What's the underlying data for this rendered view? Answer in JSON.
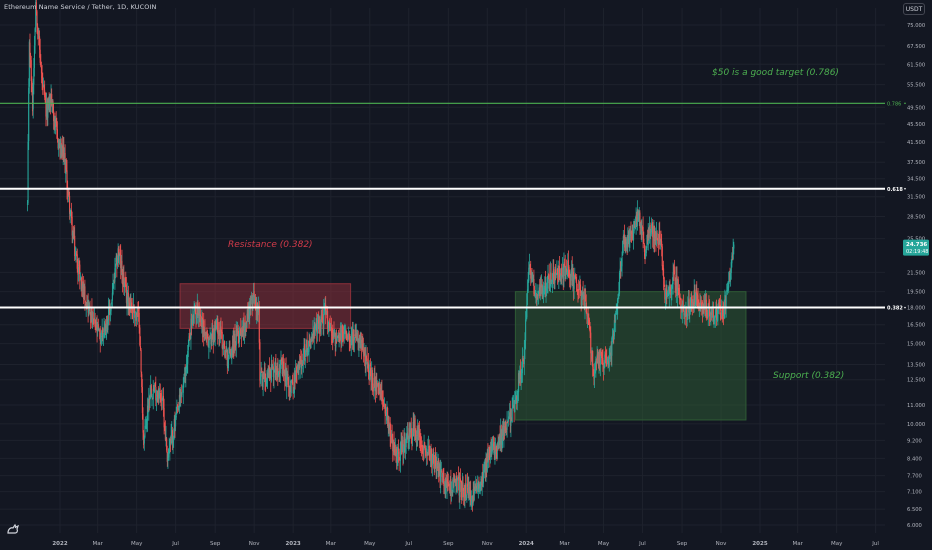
{
  "header": {
    "symbol_title": "Ethereum Name Service / Tether, 1D, KUCOIN",
    "currency": "USDT"
  },
  "price_badge": {
    "price": "24.736",
    "countdown": "02:19:48"
  },
  "colors": {
    "background": "#131722",
    "grid": "#1e222d",
    "up": "#26a69a",
    "down": "#ef5350",
    "resistance_text": "#d23b4a",
    "support_text": "#4caf50",
    "target_line": "#4caf50",
    "fib_line": "#ffffff",
    "resistance_box": "#8b2f3a",
    "support_box": "#2e5a34"
  },
  "annotations": {
    "target": "$50 is a good target (0.786)",
    "resistance": "Resistance (0.382)",
    "support": "Support (0.382)"
  },
  "chart_data": {
    "type": "candlestick",
    "title": "Ethereum Name Service / Tether, 1D, KUCOIN",
    "y_scale": "log",
    "ylim": [
      5.5,
      90
    ],
    "y_ticks": [
      "75.000",
      "67.500",
      "61.500",
      "55.500",
      "49.500",
      "45.500",
      "41.500",
      "37.500",
      "34.500",
      "31.500",
      "28.500",
      "25.500",
      "21.500",
      "19.500",
      "18.000",
      "16.500",
      "15.000",
      "13.500",
      "12.500",
      "11.000",
      "10.000",
      "9.200",
      "8.400",
      "7.700",
      "7.100",
      "6.500",
      "6.000"
    ],
    "x_labels": [
      {
        "label": "2022",
        "date": "2022-01-01",
        "bold": true
      },
      {
        "label": "Mar",
        "date": "2022-03-01"
      },
      {
        "label": "May",
        "date": "2022-05-01"
      },
      {
        "label": "Jul",
        "date": "2022-07-01"
      },
      {
        "label": "Sep",
        "date": "2022-09-01"
      },
      {
        "label": "Nov",
        "date": "2022-11-01"
      },
      {
        "label": "2023",
        "date": "2023-01-01",
        "bold": true
      },
      {
        "label": "Mar",
        "date": "2023-03-01"
      },
      {
        "label": "May",
        "date": "2023-05-01"
      },
      {
        "label": "Jul",
        "date": "2023-07-01"
      },
      {
        "label": "Sep",
        "date": "2023-09-01"
      },
      {
        "label": "Nov",
        "date": "2023-11-01"
      },
      {
        "label": "2024",
        "date": "2024-01-01",
        "bold": true
      },
      {
        "label": "Mar",
        "date": "2024-03-01"
      },
      {
        "label": "May",
        "date": "2024-05-01"
      },
      {
        "label": "Jul",
        "date": "2024-07-01"
      },
      {
        "label": "Sep",
        "date": "2024-09-01"
      },
      {
        "label": "Nov",
        "date": "2024-11-01"
      },
      {
        "label": "2025",
        "date": "2025-01-01",
        "bold": true
      },
      {
        "label": "Mar",
        "date": "2025-03-01"
      },
      {
        "label": "May",
        "date": "2025-05-01"
      },
      {
        "label": "Jul",
        "date": "2025-07-01"
      }
    ],
    "x_range": [
      "2021-11-10",
      "2025-08-01"
    ],
    "last_date": "2024-11-22",
    "price_path": [
      [
        "2021-11-11",
        30
      ],
      [
        "2021-11-14",
        70
      ],
      [
        "2021-11-19",
        50
      ],
      [
        "2021-11-24",
        85
      ],
      [
        "2021-12-03",
        58
      ],
      [
        "2021-12-10",
        48
      ],
      [
        "2021-12-18",
        52
      ],
      [
        "2021-12-28",
        42
      ],
      [
        "2022-01-08",
        38
      ],
      [
        "2022-01-16",
        30
      ],
      [
        "2022-01-24",
        24
      ],
      [
        "2022-02-05",
        20
      ],
      [
        "2022-02-20",
        17
      ],
      [
        "2022-03-05",
        15.5
      ],
      [
        "2022-03-20",
        17.5
      ],
      [
        "2022-04-02",
        24
      ],
      [
        "2022-04-15",
        19
      ],
      [
        "2022-05-05",
        17
      ],
      [
        "2022-05-12",
        9
      ],
      [
        "2022-05-22",
        12
      ],
      [
        "2022-06-10",
        11.5
      ],
      [
        "2022-06-18",
        8.5
      ],
      [
        "2022-06-30",
        10
      ],
      [
        "2022-07-15",
        12.5
      ],
      [
        "2022-07-25",
        16.5
      ],
      [
        "2022-08-05",
        18
      ],
      [
        "2022-08-20",
        15
      ],
      [
        "2022-09-05",
        16.5
      ],
      [
        "2022-09-20",
        14
      ],
      [
        "2022-10-05",
        15.5
      ],
      [
        "2022-10-20",
        17
      ],
      [
        "2022-10-30",
        19
      ],
      [
        "2022-11-08",
        17.5
      ],
      [
        "2022-11-10",
        12.5
      ],
      [
        "2022-11-25",
        13
      ],
      [
        "2022-12-10",
        13.5
      ],
      [
        "2022-12-30",
        12
      ],
      [
        "2023-01-15",
        14
      ],
      [
        "2023-02-05",
        16
      ],
      [
        "2023-02-20",
        17.5
      ],
      [
        "2023-03-10",
        15
      ],
      [
        "2023-03-25",
        16
      ],
      [
        "2023-04-15",
        15
      ],
      [
        "2023-05-05",
        12.5
      ],
      [
        "2023-05-25",
        11
      ],
      [
        "2023-06-10",
        8.5
      ],
      [
        "2023-06-25",
        9
      ],
      [
        "2023-07-10",
        9.8
      ],
      [
        "2023-07-25",
        9
      ],
      [
        "2023-08-15",
        8
      ],
      [
        "2023-08-28",
        7.3
      ],
      [
        "2023-09-10",
        7.4
      ],
      [
        "2023-09-25",
        7.2
      ],
      [
        "2023-10-10",
        6.9
      ],
      [
        "2023-10-25",
        7.8
      ],
      [
        "2023-11-10",
        8.9
      ],
      [
        "2023-11-25",
        9.5
      ],
      [
        "2023-12-10",
        10.5
      ],
      [
        "2023-12-18",
        12
      ],
      [
        "2023-12-28",
        14
      ],
      [
        "2024-01-05",
        22
      ],
      [
        "2024-01-12",
        20
      ],
      [
        "2024-01-20",
        19
      ],
      [
        "2024-02-01",
        20.5
      ],
      [
        "2024-02-15",
        21
      ],
      [
        "2024-03-05",
        22
      ],
      [
        "2024-03-20",
        20
      ],
      [
        "2024-04-05",
        18
      ],
      [
        "2024-04-15",
        13
      ],
      [
        "2024-04-25",
        14
      ],
      [
        "2024-05-10",
        13.5
      ],
      [
        "2024-05-20",
        17
      ],
      [
        "2024-06-01",
        25
      ],
      [
        "2024-06-15",
        26
      ],
      [
        "2024-06-25",
        29
      ],
      [
        "2024-07-05",
        24
      ],
      [
        "2024-07-15",
        27
      ],
      [
        "2024-07-30",
        25
      ],
      [
        "2024-08-05",
        18.5
      ],
      [
        "2024-08-20",
        21
      ],
      [
        "2024-09-05",
        17.5
      ],
      [
        "2024-09-20",
        19
      ],
      [
        "2024-10-05",
        18
      ],
      [
        "2024-10-20",
        17.5
      ],
      [
        "2024-11-05",
        18
      ],
      [
        "2024-11-15",
        21
      ],
      [
        "2024-11-22",
        24.736
      ]
    ],
    "horizontal_lines": [
      {
        "name": "target",
        "price": 50.5,
        "label": "0.786",
        "color": "#4caf50"
      },
      {
        "name": "fib-0618",
        "price": 32.8,
        "label": "0.618",
        "color": "#ffffff"
      },
      {
        "name": "fib-0382",
        "price": 18.0,
        "label": "0.382",
        "color": "#ffffff"
      }
    ],
    "zones": [
      {
        "name": "resistance-zone",
        "from": "2022-07-08",
        "to": "2023-04-01",
        "low": 16.2,
        "high": 20.3
      },
      {
        "name": "support-zone",
        "from": "2023-12-15",
        "to": "2024-12-10",
        "low": 10.2,
        "high": 19.5
      }
    ]
  }
}
